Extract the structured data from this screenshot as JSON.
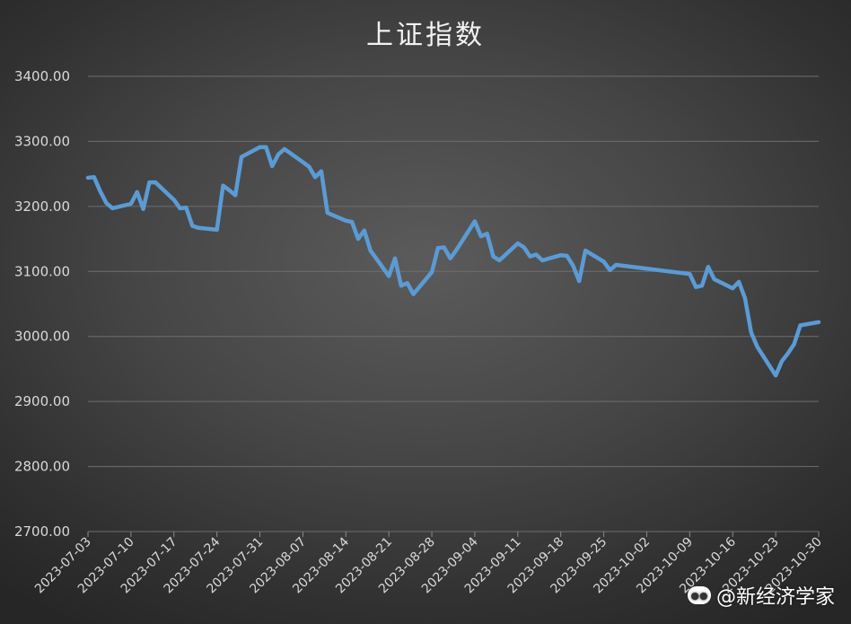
{
  "chart_data": {
    "type": "line",
    "title": "上证指数",
    "xlabel": "",
    "ylabel": "",
    "ylim": [
      2700,
      3400
    ],
    "yticks": [
      "3400.00",
      "3300.00",
      "3200.00",
      "3100.00",
      "3000.00",
      "2900.00",
      "2800.00",
      "2700.00"
    ],
    "xlim": [
      "2023-07-03",
      "2023-10-30"
    ],
    "xticks": [
      "2023-07-03",
      "2023-07-10",
      "2023-07-17",
      "2023-07-24",
      "2023-07-31",
      "2023-08-07",
      "2023-08-14",
      "2023-08-21",
      "2023-08-28",
      "2023-09-04",
      "2023-09-11",
      "2023-09-18",
      "2023-09-25",
      "2023-10-02",
      "2023-10-09",
      "2023-10-16",
      "2023-10-23",
      "2023-10-30"
    ],
    "grid": true,
    "line_color": "#5b9bd5",
    "series": [
      {
        "name": "",
        "x": [
          "2023-07-03",
          "2023-07-04",
          "2023-07-05",
          "2023-07-06",
          "2023-07-07",
          "2023-07-10",
          "2023-07-11",
          "2023-07-12",
          "2023-07-13",
          "2023-07-14",
          "2023-07-17",
          "2023-07-18",
          "2023-07-19",
          "2023-07-20",
          "2023-07-21",
          "2023-07-24",
          "2023-07-25",
          "2023-07-26",
          "2023-07-27",
          "2023-07-28",
          "2023-07-31",
          "2023-08-01",
          "2023-08-02",
          "2023-08-03",
          "2023-08-04",
          "2023-08-07",
          "2023-08-08",
          "2023-08-09",
          "2023-08-10",
          "2023-08-11",
          "2023-08-14",
          "2023-08-15",
          "2023-08-16",
          "2023-08-17",
          "2023-08-18",
          "2023-08-21",
          "2023-08-22",
          "2023-08-23",
          "2023-08-24",
          "2023-08-25",
          "2023-08-28",
          "2023-08-29",
          "2023-08-30",
          "2023-08-31",
          "2023-09-01",
          "2023-09-04",
          "2023-09-05",
          "2023-09-06",
          "2023-09-07",
          "2023-09-08",
          "2023-09-11",
          "2023-09-12",
          "2023-09-13",
          "2023-09-14",
          "2023-09-15",
          "2023-09-18",
          "2023-09-19",
          "2023-09-20",
          "2023-09-21",
          "2023-09-22",
          "2023-09-25",
          "2023-09-26",
          "2023-09-27",
          "2023-10-09",
          "2023-10-10",
          "2023-10-11",
          "2023-10-12",
          "2023-10-13",
          "2023-10-16",
          "2023-10-17",
          "2023-10-18",
          "2023-10-19",
          "2023-10-20",
          "2023-10-23",
          "2023-10-24",
          "2023-10-25",
          "2023-10-26",
          "2023-10-27",
          "2023-10-30"
        ],
        "y": [
          3244,
          3245,
          3223,
          3205,
          3197,
          3204,
          3222,
          3196,
          3237,
          3237,
          3210,
          3197,
          3198,
          3170,
          3167,
          3164,
          3232,
          3225,
          3217,
          3276,
          3291,
          3291,
          3262,
          3280,
          3288,
          3268,
          3261,
          3245,
          3254,
          3190,
          3178,
          3176,
          3150,
          3163,
          3132,
          3093,
          3120,
          3078,
          3082,
          3065,
          3099,
          3136,
          3137,
          3120,
          3133,
          3177,
          3154,
          3158,
          3123,
          3117,
          3143,
          3137,
          3123,
          3126,
          3117,
          3125,
          3124,
          3109,
          3085,
          3132,
          3115,
          3102,
          3110,
          3096,
          3076,
          3078,
          3107,
          3088,
          3074,
          3084,
          3059,
          3006,
          2984,
          2940,
          2962,
          2974,
          2988,
          3017,
          3022
        ]
      }
    ]
  },
  "watermark": {
    "icon": "paw-icon",
    "text": "@新经济学家"
  }
}
